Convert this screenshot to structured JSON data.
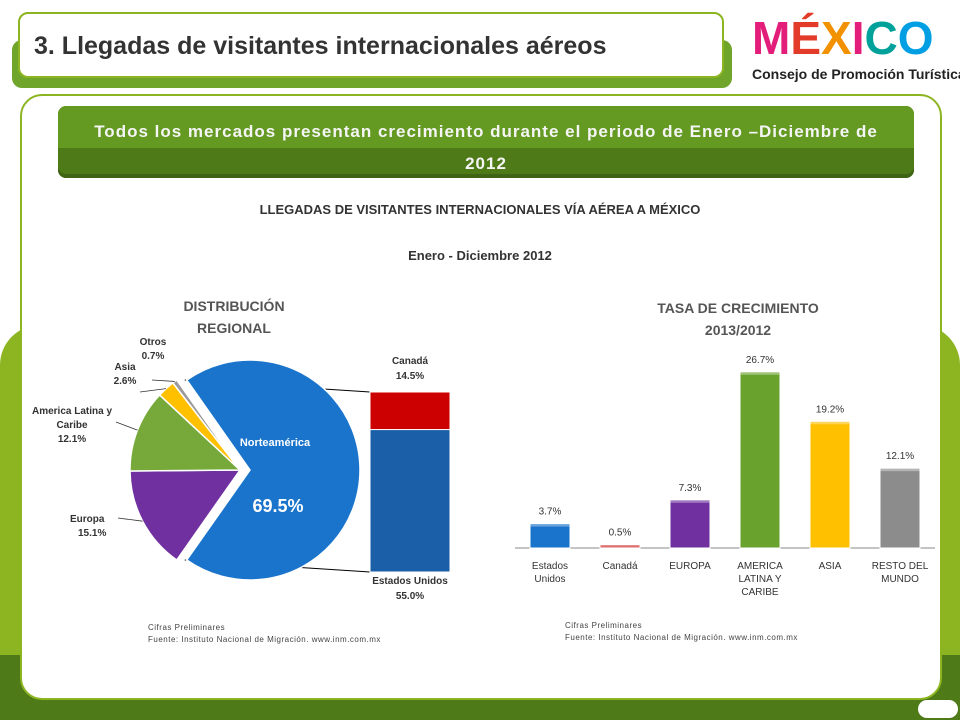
{
  "header": {
    "title": "3. Llegadas de visitantes internacionales aéreos",
    "logo_word": "MÉXICO",
    "logo_subtitle": "Consejo de Promoción Turística"
  },
  "banner": {
    "line1": "Todos los mercados presentan crecimiento durante el periodo de Enero –Diciembre de",
    "line2": "2012"
  },
  "main_title": "LLEGADAS DE VISITANTES INTERNACIONALES VÍA AÉREA A MÉXICO",
  "main_subtitle": "Enero - Diciembre 2012",
  "notes": {
    "left": [
      "Cifras Preliminares",
      "Fuente: Instituto Nacional de Migración. www.inm.com.mx"
    ],
    "right": [
      "Cifras Preliminares",
      "Fuente: Instituto Nacional de Migración. www.inm.com.mx"
    ]
  },
  "colors": {
    "green": "#8cb521",
    "dark_green": "#4e7a18",
    "blue": "#1a74cc",
    "red": "#cc0000",
    "purple": "#7030a0",
    "lime": "#77a83a",
    "yellow": "#ffc000",
    "gray": "#8c8c8c"
  },
  "chart_data": [
    {
      "type": "pie",
      "title": "DISTRIBUCIÓN REGIONAL",
      "slices": [
        {
          "label": "Norteamérica",
          "value": 69.5,
          "display": "69.5%",
          "color": "#1a74cc"
        },
        {
          "label": "Europa",
          "value": 15.1,
          "display": "15.1%",
          "color": "#7030a0"
        },
        {
          "label": "America Latina y Caribe",
          "value": 12.1,
          "display": "12.1%",
          "color": "#77a83a"
        },
        {
          "label": "Asia",
          "value": 2.6,
          "display": "2.6%",
          "color": "#ffc000"
        },
        {
          "label": "Otros",
          "value": 0.7,
          "display": "0.7%",
          "color": "#9a9a9a"
        }
      ],
      "breakdown": {
        "of": "Norteamérica",
        "type": "stacked-bar",
        "segments": [
          {
            "label": "Estados Unidos",
            "value": 55.0,
            "display": "55.0%",
            "color": "#1a5fa8"
          },
          {
            "label": "Canadá",
            "value": 14.5,
            "display": "14.5%",
            "color": "#cc0000"
          }
        ]
      }
    },
    {
      "type": "bar",
      "title": "TASA DE CRECIMIENTO 2013/2012",
      "categories": [
        "Estados Unidos",
        "Canadá",
        "EUROPA",
        "AMERICA LATINA Y CARIBE",
        "ASIA",
        "RESTO DEL MUNDO"
      ],
      "values": [
        3.7,
        0.5,
        7.3,
        26.7,
        19.2,
        12.1
      ],
      "labels": [
        "3.7%",
        "0.5%",
        "7.3%",
        "26.7%",
        "19.2%",
        "12.1%"
      ],
      "colors": [
        "#1a74cc",
        "#cc2222",
        "#7030a0",
        "#6aa22e",
        "#ffc000",
        "#8c8c8c"
      ],
      "ylim": [
        0,
        30
      ]
    }
  ]
}
